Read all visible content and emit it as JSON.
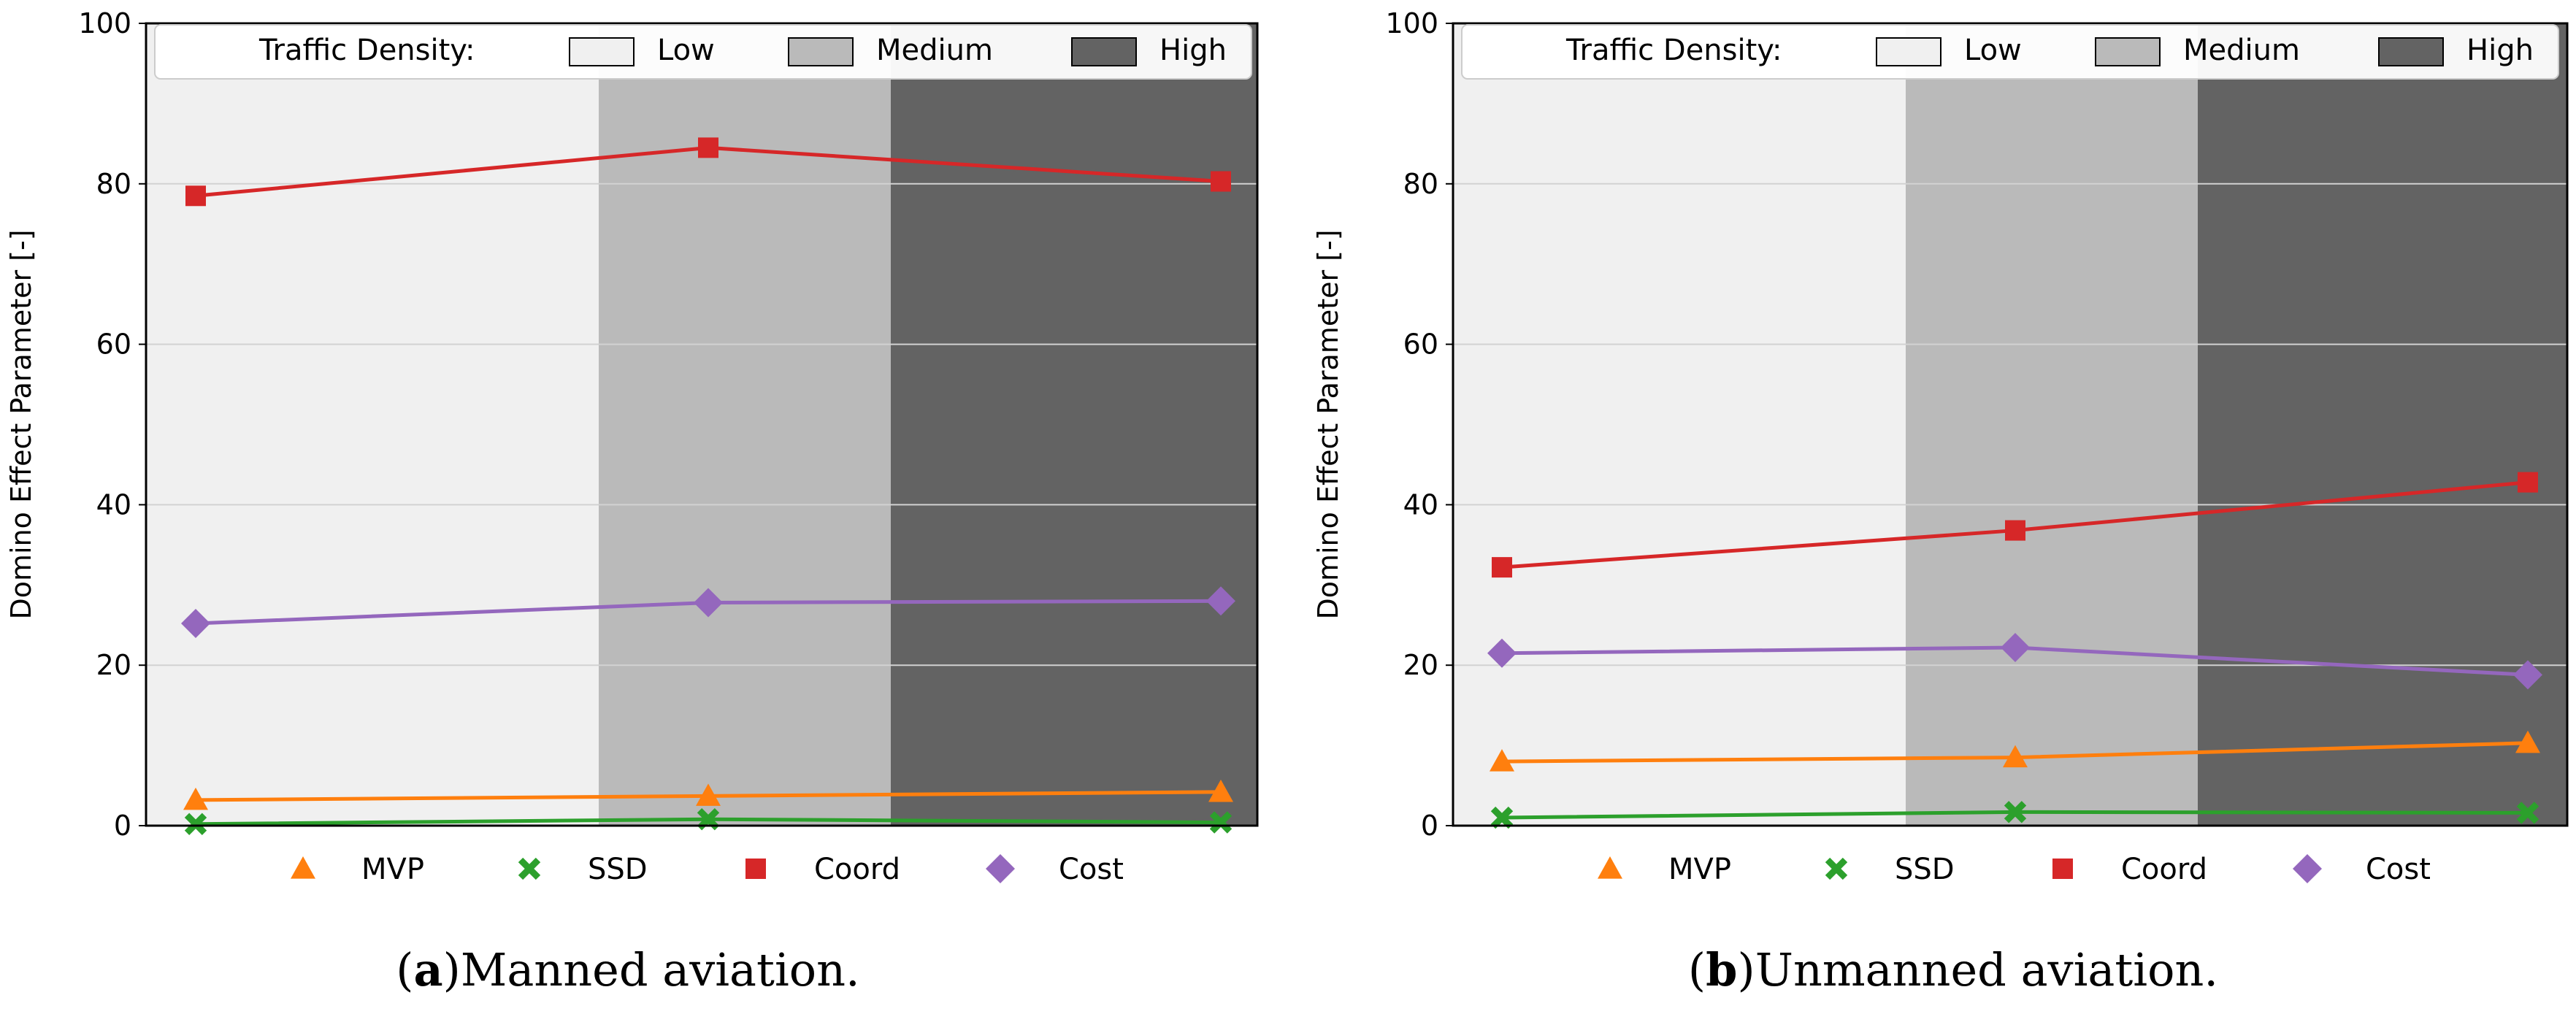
{
  "legend": {
    "density_title": "Traffic Density:",
    "density_levels": [
      {
        "label": "Low",
        "color": "#f0f0f0"
      },
      {
        "label": "Medium",
        "color": "#bababa"
      },
      {
        "label": "High",
        "color": "#636363"
      }
    ]
  },
  "series_styles": {
    "MVP": {
      "label": "MVP",
      "color": "#ff7f0e",
      "marker": "triangle-icon"
    },
    "SSD": {
      "label": "SSD",
      "color": "#2ca02c",
      "marker": "x-cross-icon"
    },
    "Coord": {
      "label": "Coord",
      "color": "#d62728",
      "marker": "square-icon"
    },
    "Cost": {
      "label": "Cost",
      "color": "#9467bd",
      "marker": "diamond-icon"
    }
  },
  "chart_data": [
    {
      "type": "line",
      "panel_id": "a",
      "caption_letter": "a",
      "caption_text": "Manned aviation.",
      "x": [
        "Low",
        "Medium",
        "High"
      ],
      "ylabel": "Domino Effect Parameter [-]",
      "ylim": [
        0,
        100
      ],
      "yticks": [
        0,
        20,
        40,
        60,
        80,
        100
      ],
      "grid": "y",
      "series": [
        {
          "name": "MVP",
          "values": [
            3.2,
            3.7,
            4.2
          ]
        },
        {
          "name": "SSD",
          "values": [
            0.2,
            0.8,
            0.4
          ]
        },
        {
          "name": "Coord",
          "values": [
            78.5,
            84.5,
            80.3
          ]
        },
        {
          "name": "Cost",
          "values": [
            25.2,
            27.8,
            28.0
          ]
        }
      ]
    },
    {
      "type": "line",
      "panel_id": "b",
      "caption_letter": "b",
      "caption_text": "Unmanned aviation.",
      "x": [
        "Low",
        "Medium",
        "High"
      ],
      "ylabel": "Domino Effect Parameter [-]",
      "ylim": [
        0,
        100
      ],
      "yticks": [
        0,
        20,
        40,
        60,
        80,
        100
      ],
      "grid": "y",
      "series": [
        {
          "name": "MVP",
          "values": [
            8.0,
            8.5,
            10.3
          ]
        },
        {
          "name": "SSD",
          "values": [
            1.0,
            1.7,
            1.6
          ]
        },
        {
          "name": "Coord",
          "values": [
            32.2,
            36.8,
            42.8
          ]
        },
        {
          "name": "Cost",
          "values": [
            21.5,
            22.2,
            18.8
          ]
        }
      ]
    }
  ]
}
